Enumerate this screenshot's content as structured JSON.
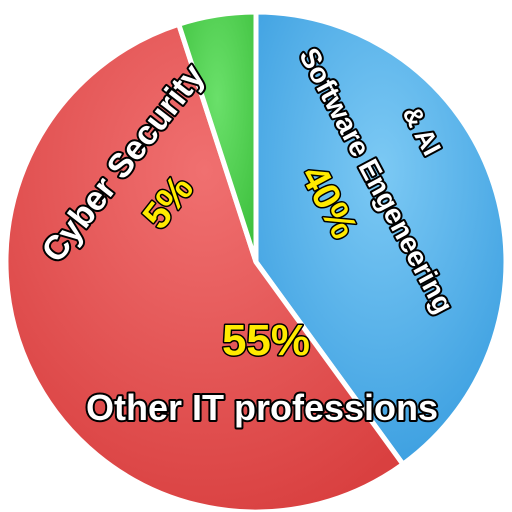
{
  "chart_data": {
    "type": "pie",
    "slices": [
      {
        "label": "Software Engeneering",
        "label_prefix": "& AI",
        "value": 40,
        "value_label": "40%",
        "color": "#4aaee8"
      },
      {
        "label": "Other IT professions",
        "value": 55,
        "value_label": "55%",
        "color": "#e85050"
      },
      {
        "label": "Cyber Security",
        "value": 5,
        "value_label": "5%",
        "color": "#4ccf4c"
      }
    ],
    "title": "",
    "legend": "none"
  }
}
